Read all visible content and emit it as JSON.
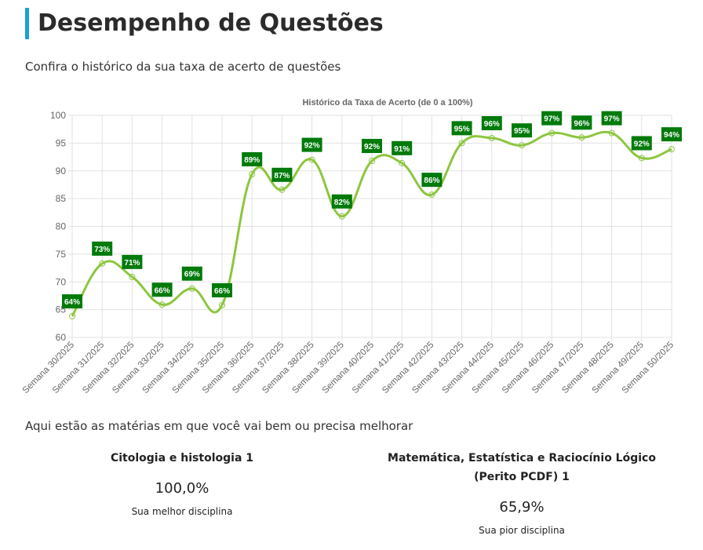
{
  "header": {
    "title": "Desempenho de Questões",
    "subtitle": "Confira o histórico da sua taxa de acerto de questões"
  },
  "chart_data": {
    "type": "line",
    "title": "Histórico da Taxa de Acerto (de 0 a 100%)",
    "ylim": [
      60,
      100
    ],
    "yticks": [
      60,
      65,
      70,
      75,
      80,
      85,
      90,
      95,
      100
    ],
    "grid": true,
    "line_color": "#8dc63f",
    "label_bg": "#007a0a",
    "categories": [
      "Semana 30/2025",
      "Semana 31/2025",
      "Semana 32/2025",
      "Semana 33/2025",
      "Semana 34/2025",
      "Semana 35/2025",
      "Semana 36/2025",
      "Semana 37/2025",
      "Semana 38/2025",
      "Semana 39/2025",
      "Semana 40/2025",
      "Semana 41/2025",
      "Semana 42/2025",
      "Semana 43/2025",
      "Semana 44/2025",
      "Semana 45/2025",
      "Semana 46/2025",
      "Semana 47/2025",
      "Semana 48/2025",
      "Semana 49/2025",
      "Semana 50/2025"
    ],
    "values": [
      63.8,
      73.3,
      70.9,
      65.9,
      68.8,
      65.8,
      89.4,
      86.6,
      92.0,
      81.8,
      91.8,
      91.4,
      85.7,
      95.0,
      95.9,
      94.6,
      96.8,
      96.0,
      96.8,
      92.3,
      93.9
    ],
    "labels": [
      "64%",
      "73%",
      "71%",
      "66%",
      "69%",
      "66%",
      "89%",
      "87%",
      "92%",
      "82%",
      "92%",
      "91%",
      "86%",
      "95%",
      "96%",
      "95%",
      "97%",
      "96%",
      "97%",
      "92%",
      "94%"
    ]
  },
  "subjects": {
    "heading": "Aqui estão as matérias em que você vai bem ou precisa melhorar",
    "best": {
      "name": "Citologia e histologia 1",
      "value": "100,0%",
      "desc": "Sua melhor disciplina"
    },
    "worst": {
      "name": "Matemática, Estatística e Raciocínio Lógico (Perito PCDF) 1",
      "value": "65,9%",
      "desc": "Sua pior disciplina"
    }
  }
}
